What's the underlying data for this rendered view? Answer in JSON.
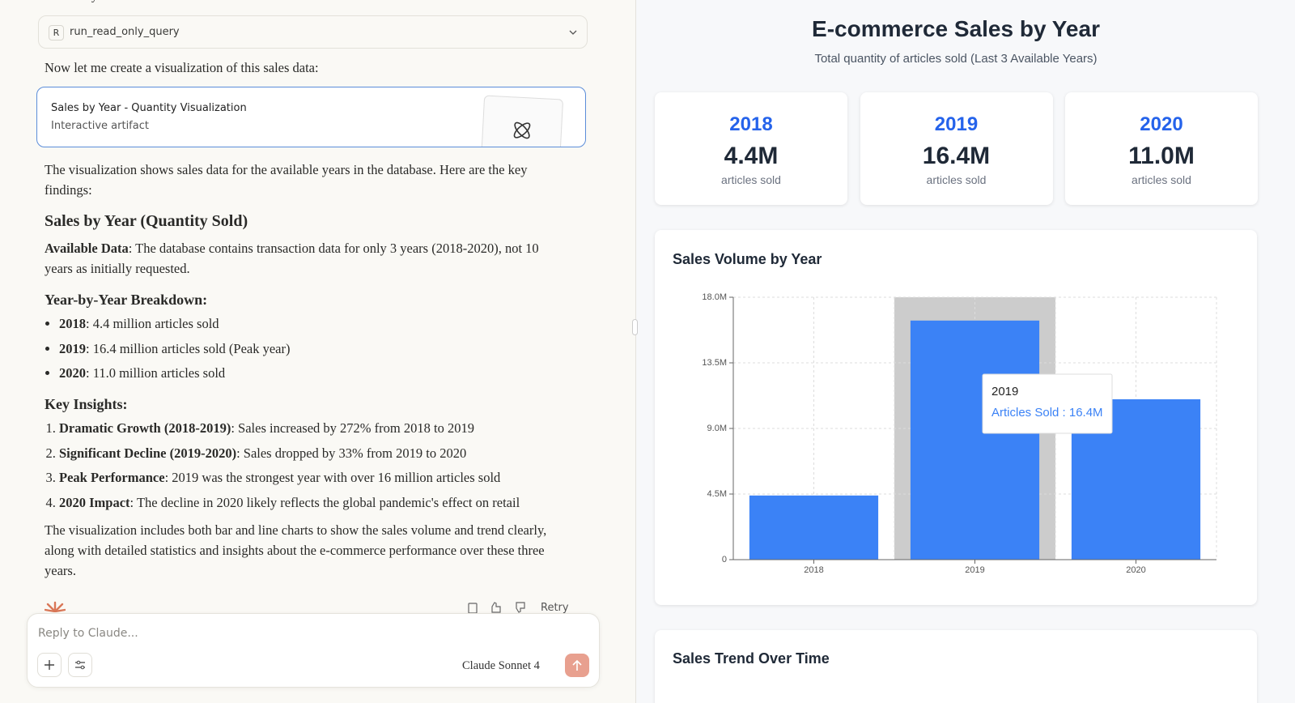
{
  "chat": {
    "cropped_top": "available years.",
    "tool_call": {
      "badge": "R",
      "name": "run_read_only_query"
    },
    "intro": "Now let me create a visualization of this sales data:",
    "artifact": {
      "title": "Sales by Year - Quantity Visualization",
      "subtitle": "Interactive artifact"
    },
    "summary": "The visualization shows sales data for the available years in the database. Here are the key findings:",
    "heading": "Sales by Year (Quantity Sold)",
    "available": {
      "label": "Available Data",
      "text": ": The database contains transaction data for only 3 years (2018-2020), not 10 years as initially requested."
    },
    "breakdown_heading": "Year-by-Year Breakdown:",
    "breakdown": [
      {
        "label": "2018",
        "text": ": 4.4 million articles sold"
      },
      {
        "label": "2019",
        "text": ": 16.4 million articles sold (Peak year)"
      },
      {
        "label": "2020",
        "text": ": 11.0 million articles sold"
      }
    ],
    "insights_heading": "Key Insights:",
    "insights": [
      {
        "label": "Dramatic Growth (2018-2019)",
        "text": ": Sales increased by 272% from 2018 to 2019"
      },
      {
        "label": "Significant Decline (2019-2020)",
        "text": ": Sales dropped by 33% from 2019 to 2020"
      },
      {
        "label": "Peak Performance",
        "text": ": 2019 was the strongest year with over 16 million articles sold"
      },
      {
        "label": "2020 Impact",
        "text": ": The decline in 2020 likely reflects the global pandemic's effect on retail"
      }
    ],
    "closing": "The visualization includes both bar and line charts to show the sales volume and trend clearly, along with detailed statistics and insights about the e-commerce performance over these three years.",
    "retry": "Retry",
    "composer": {
      "placeholder": "Reply to Claude...",
      "model": "Claude Sonnet 4"
    }
  },
  "artifact": {
    "title": "E-commerce Sales by Year",
    "subtitle": "Total quantity of articles sold (Last 3 Available Years)",
    "cards": [
      {
        "year": "2018",
        "value": "4.4M",
        "caption": "articles sold"
      },
      {
        "year": "2019",
        "value": "16.4M",
        "caption": "articles sold"
      },
      {
        "year": "2020",
        "value": "11.0M",
        "caption": "articles sold"
      }
    ],
    "trend_title": "Sales Trend Over Time"
  },
  "chart_data": {
    "type": "bar",
    "title": "Sales Volume by Year",
    "categories": [
      "2018",
      "2019",
      "2020"
    ],
    "series": [
      {
        "name": "Articles Sold",
        "color": "#3b82f6",
        "values": [
          4400000,
          16400000,
          11000000
        ]
      }
    ],
    "ylim": [
      0,
      18000000
    ],
    "yticks": [
      0,
      {
        "value": 4500000,
        "label": "4.5M"
      },
      {
        "value": 9000000,
        "label": "9.0M"
      },
      {
        "value": 13500000,
        "label": "13.5M"
      },
      {
        "value": 18000000,
        "label": "18.0M"
      }
    ],
    "grid": true,
    "tooltip": {
      "title": "2019",
      "text": "Articles Sold : 16.4M"
    }
  }
}
